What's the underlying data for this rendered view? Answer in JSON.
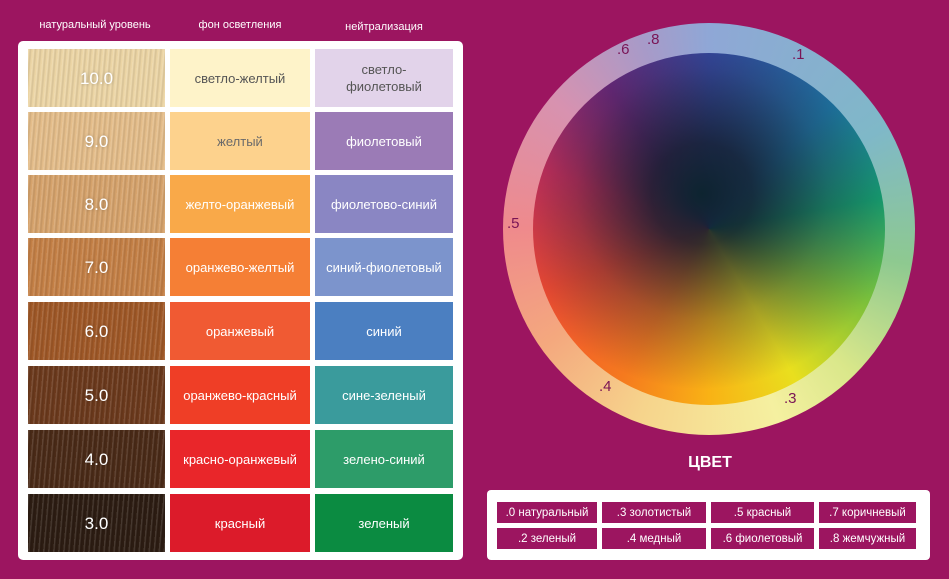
{
  "headers": [
    "натуральный уровень",
    "фон осветления",
    "нейтрализация"
  ],
  "rows": [
    {
      "level": "10.0",
      "hair_color": "#ecd5a5",
      "light": "светло-желтый",
      "light_color": "#fef3c9",
      "light_text": "#555555",
      "neutral": "светло-фиолетовый",
      "neutral_color": "#e2d3ea",
      "neutral_text": "#555555"
    },
    {
      "level": "9.0",
      "hair_color": "#e4bd8a",
      "light": "желтый",
      "light_color": "#fdd28d",
      "light_text": "#6a6a6a",
      "neutral": "фиолетовый",
      "neutral_color": "#9b7bb6",
      "neutral_text": "#ffffff"
    },
    {
      "level": "8.0",
      "hair_color": "#d6a36c",
      "light": "желто-оранжевый",
      "light_color": "#f9a949",
      "light_text": "#ffffff",
      "neutral": "фиолетово-синий",
      "neutral_color": "#8a86c3",
      "neutral_text": "#ffffff"
    },
    {
      "level": "7.0",
      "hair_color": "#c48046",
      "light": "оранжево-желтый",
      "light_color": "#f57f35",
      "light_text": "#ffffff",
      "neutral": "синий-фиолетовый",
      "neutral_color": "#7c94cc",
      "neutral_text": "#ffffff"
    },
    {
      "level": "6.0",
      "hair_color": "#9f5827",
      "light": "оранжевый",
      "light_color": "#f05a33",
      "light_text": "#ffffff",
      "neutral": "синий",
      "neutral_color": "#4b7fc1",
      "neutral_text": "#ffffff"
    },
    {
      "level": "5.0",
      "hair_color": "#6b391c",
      "light": "оранжево-красный",
      "light_color": "#ef3e26",
      "light_text": "#ffffff",
      "neutral": "сине-зеленый",
      "neutral_color": "#3a9b9c",
      "neutral_text": "#ffffff"
    },
    {
      "level": "4.0",
      "hair_color": "#4a2a17",
      "light": "красно-оранжевый",
      "light_color": "#e9262a",
      "light_text": "#ffffff",
      "neutral": "зелено-синий",
      "neutral_color": "#2d9c69",
      "neutral_text": "#ffffff"
    },
    {
      "level": "3.0",
      "hair_color": "#2c1c12",
      "light": "красный",
      "light_color": "#dc1b2a",
      "light_text": "#ffffff",
      "neutral": "зеленый",
      "neutral_color": "#0b8b41",
      "neutral_text": "#ffffff"
    }
  ],
  "wheel_labels": [
    ".1",
    ".3",
    ".4",
    ".5",
    ".6",
    ".8"
  ],
  "wheel_title": "ЦВЕТ",
  "legend": [
    ".0 натуральный",
    ".3 золотистый",
    ".5 красный",
    ".7 коричневый",
    ".2 зеленый",
    ".4 медный",
    ".6 фиолетовый",
    ".8 жемчужный"
  ],
  "colors": {
    "background": "#9c1560",
    "label": "#7a1455"
  }
}
